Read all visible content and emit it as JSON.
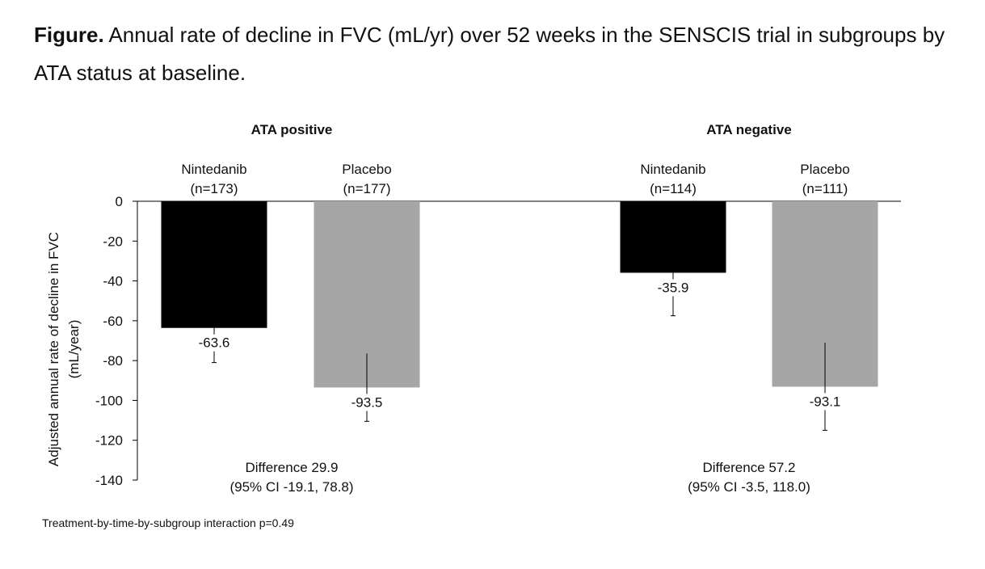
{
  "caption": {
    "label": "Figure.",
    "text": "Annual rate of decline in FVC (mL/yr) over 52 weeks in the SENSCIS trial in subgroups by ATA status at baseline."
  },
  "footnote": "Treatment-by-time-by-subgroup  interaction p=0.49",
  "colors": {
    "nintedanib": "#000000",
    "placebo": "#a6a6a6",
    "axis": "#000000"
  },
  "chart_data": {
    "type": "bar",
    "title": "Annual rate of decline in FVC (mL/yr) over 52 weeks in the SENSCIS trial in subgroups by ATA status at baseline.",
    "ylabel": "Adjusted annual rate of decline in FVC",
    "ylabel_unit": "(mL/year)",
    "ylim": [
      -140,
      0
    ],
    "yticks": [
      0,
      -20,
      -40,
      -60,
      -80,
      -100,
      -120,
      -140
    ],
    "groups": [
      {
        "name": "ATA positive",
        "difference": "Difference 29.9",
        "ci": "(95% CI -19.1, 78.8)",
        "bars": [
          {
            "series": "Nintedanib",
            "n": "(n=173)",
            "value": -63.6,
            "label": "-63.6",
            "err_low": -81.0,
            "err_high": -63.6
          },
          {
            "series": "Placebo",
            "n": "(n=177)",
            "value": -93.5,
            "label": "-93.5",
            "err_low": -110.5,
            "err_high": -76.5
          }
        ]
      },
      {
        "name": "ATA negative",
        "difference": "Difference 57.2",
        "ci": "(95% CI -3.5, 118.0)",
        "bars": [
          {
            "series": "Nintedanib",
            "n": "(n=114)",
            "value": -35.9,
            "label": "-35.9",
            "err_low": -57.5,
            "err_high": -35.9
          },
          {
            "series": "Placebo",
            "n": "(n=111)",
            "value": -93.1,
            "label": "-93.1",
            "err_low": -115.0,
            "err_high": -71.0
          }
        ]
      }
    ]
  }
}
